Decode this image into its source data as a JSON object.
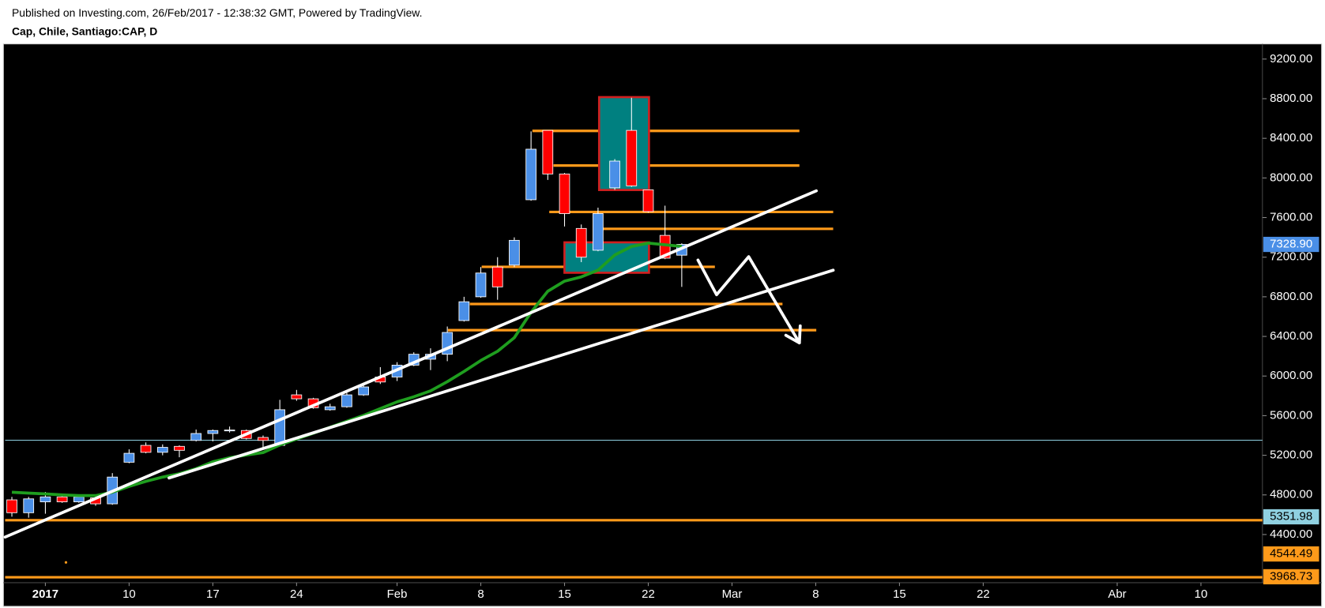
{
  "chart_data": {
    "type": "candlestick",
    "subtitle": "Published on Investing.com, 26/Feb/2017 - 12:38:32 GMT, Powered by TradingView.",
    "title": "Cap, Chile, Santiago:CAP, D",
    "x": [
      "2016-12-29",
      "2016-12-30",
      "2017-01-03",
      "2017-01-04",
      "2017-01-05",
      "2017-01-06",
      "2017-01-09",
      "2017-01-10",
      "2017-01-11",
      "2017-01-12",
      "2017-01-13",
      "2017-01-16",
      "2017-01-17",
      "2017-01-18",
      "2017-01-19",
      "2017-01-20",
      "2017-01-23",
      "2017-01-24",
      "2017-01-25",
      "2017-01-26",
      "2017-01-27",
      "2017-01-30",
      "2017-01-31",
      "2017-02-01",
      "2017-02-02",
      "2017-02-03",
      "2017-02-06",
      "2017-02-07",
      "2017-02-08",
      "2017-02-09",
      "2017-02-10",
      "2017-02-13",
      "2017-02-14",
      "2017-02-15",
      "2017-02-16",
      "2017-02-17",
      "2017-02-20",
      "2017-02-21",
      "2017-02-22",
      "2017-02-23",
      "2017-02-24"
    ],
    "open": [
      4750,
      4620,
      4730,
      4780,
      4730,
      4770,
      4710,
      5130,
      5300,
      5230,
      5290,
      5350,
      5420,
      5450,
      5450,
      5380,
      5300,
      5810,
      5770,
      5660,
      5690,
      5810,
      5990,
      5990,
      6110,
      6170,
      6220,
      6560,
      6800,
      7100,
      7120,
      7780,
      8480,
      8040,
      7490,
      7270,
      7900,
      8480,
      7880,
      7420,
      7220
    ],
    "high": [
      4780,
      4780,
      4830,
      4800,
      4800,
      4780,
      5020,
      5260,
      5330,
      5310,
      5300,
      5460,
      5460,
      5490,
      5460,
      5400,
      5760,
      5860,
      5780,
      5720,
      5830,
      5930,
      6090,
      6140,
      6240,
      6280,
      6500,
      6800,
      7100,
      7200,
      7400,
      8470,
      8480,
      8050,
      7530,
      7700,
      8190,
      8810,
      7880,
      7720,
      7340
    ],
    "low": [
      4580,
      4570,
      4610,
      4720,
      4720,
      4690,
      4700,
      5120,
      5220,
      5200,
      5180,
      5340,
      5340,
      5430,
      5360,
      5260,
      5290,
      5750,
      5670,
      5650,
      5680,
      5800,
      5920,
      5950,
      6100,
      6060,
      6150,
      6550,
      6790,
      6770,
      7100,
      7770,
      7980,
      7510,
      7150,
      7260,
      7880,
      7910,
      7650,
      7180,
      6900
    ],
    "close": [
      4620,
      4760,
      4780,
      4730,
      4780,
      4710,
      4980,
      5220,
      5230,
      5280,
      5250,
      5420,
      5450,
      5455,
      5370,
      5350,
      5660,
      5770,
      5680,
      5690,
      5810,
      5890,
      5940,
      6110,
      6220,
      6220,
      6440,
      6750,
      7040,
      6900,
      7370,
      8290,
      8040,
      7640,
      7200,
      7640,
      8170,
      7920,
      7660,
      7190,
      7328.9
    ],
    "up_color": "#4a8fe7",
    "down_color": "#ff0000",
    "ma": {
      "color": "#1f9e1f",
      "values": [
        4827,
        4818,
        4810,
        4801,
        4793,
        4793,
        4827,
        4886,
        4937,
        4980,
        5014,
        5065,
        5134,
        5176,
        5202,
        5228,
        5304,
        5364,
        5423,
        5483,
        5543,
        5602,
        5671,
        5739,
        5790,
        5850,
        5943,
        6046,
        6157,
        6250,
        6387,
        6643,
        6856,
        6958,
        7001,
        7069,
        7222,
        7308,
        7342,
        7325,
        7308
      ]
    },
    "last_price": {
      "value": 7328.9,
      "label": "7328.90",
      "color": "#4a8fe7"
    },
    "hlines": [
      {
        "value": 5351.98,
        "color": "#8fd0e0"
      },
      {
        "value": 4544.49,
        "color": "#ff9a1a"
      },
      {
        "value": 3968.73,
        "color": "#ff9a1a"
      }
    ],
    "ylim": [
      3914,
      9353
    ],
    "yticks": [
      {
        "value": 9200,
        "label": "9200.00"
      },
      {
        "value": 8800,
        "label": "8800.00"
      },
      {
        "value": 8400,
        "label": "8400.00"
      },
      {
        "value": 8000,
        "label": "8000.00"
      },
      {
        "value": 7600,
        "label": "7600.00"
      },
      {
        "value": 7200,
        "label": "7200.00"
      },
      {
        "value": 6800,
        "label": "6800.00"
      },
      {
        "value": 6400,
        "label": "6400.00"
      },
      {
        "value": 6000,
        "label": "6000.00"
      },
      {
        "value": 5600,
        "label": "5600.00"
      },
      {
        "value": 5200,
        "label": "5200.00"
      },
      {
        "value": 4800,
        "label": "4800.00"
      },
      {
        "value": 4400,
        "label": "4400.00"
      }
    ],
    "xticks": [
      {
        "value": "2017-01-03",
        "label": "2017"
      },
      {
        "value": "2017-01-10",
        "label": "10"
      },
      {
        "value": "2017-01-17",
        "label": "17"
      },
      {
        "value": "2017-01-24",
        "label": "24"
      },
      {
        "value": "2017-02-01",
        "label": "Feb"
      },
      {
        "value": "2017-02-08",
        "label": "8"
      },
      {
        "value": "2017-02-15",
        "label": "15"
      },
      {
        "value": "2017-02-22",
        "label": "22"
      },
      {
        "value": "2017-03-01",
        "label": "Mar"
      },
      {
        "value": "2017-03-08",
        "label": "8"
      },
      {
        "value": "2017-03-15",
        "label": "15"
      },
      {
        "value": "2017-03-22",
        "label": "22"
      },
      {
        "value": "2017-04-03",
        "label": "Abr"
      },
      {
        "value": "2017-04-10",
        "label": "10"
      }
    ]
  }
}
